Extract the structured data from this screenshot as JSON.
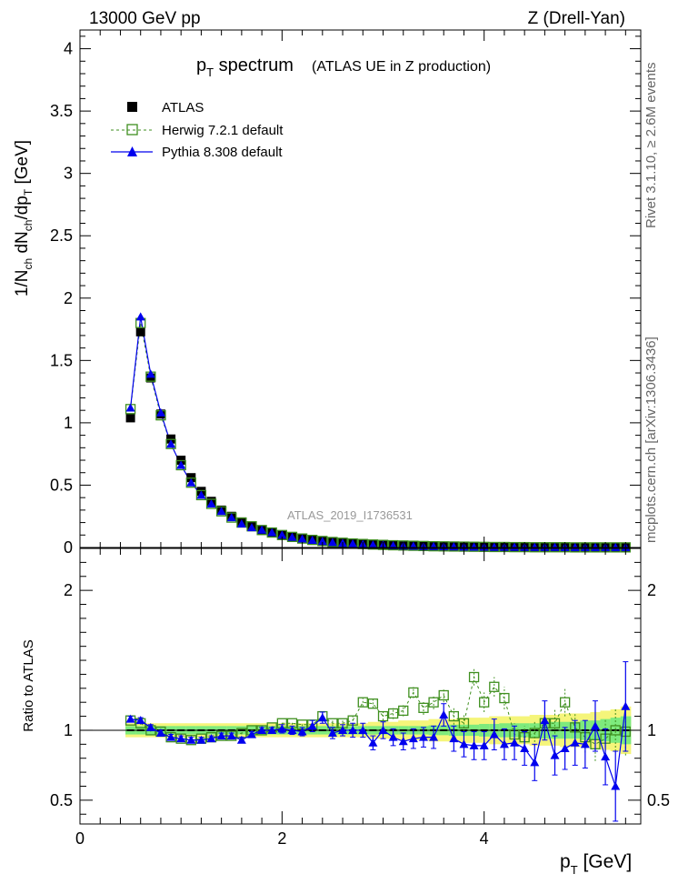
{
  "header": {
    "left": "13000 GeV pp",
    "right": "Z (Drell-Yan)"
  },
  "plot_title": {
    "main": "p",
    "main_sub": "T",
    "main_tail": " spectrum",
    "note": "(ATLAS UE in Z production)"
  },
  "side_labels": {
    "rivet": "Rivet 3.1.10, ≥ 2.6M events",
    "mcplots": "mcplots.cern.ch [arXiv:1306.3436]"
  },
  "watermark": "ATLAS_2019_I1736531",
  "colors": {
    "data": "#000000",
    "herwig": "#3f8f1f",
    "pythia": "#0000ee",
    "band_inner": "#7dea7d",
    "band_outer": "#f5f57a"
  },
  "chart_data": [
    {
      "type": "scatter",
      "title": "p_T spectrum (ATLAS UE in Z production)",
      "xlabel": "p_T [GeV]",
      "ylabel": "1/N_ch dN_ch/dp_T [GeV]",
      "xlim": [
        0,
        5.55
      ],
      "ylim": [
        0,
        4.15
      ],
      "yticks": [
        "0",
        "0.5",
        "1",
        "1.5",
        "2",
        "2.5",
        "3",
        "3.5",
        "4"
      ],
      "legend_position": "top-left",
      "x": [
        0.5,
        0.6,
        0.7,
        0.8,
        0.9,
        1.0,
        1.1,
        1.2,
        1.3,
        1.4,
        1.5,
        1.6,
        1.7,
        1.8,
        1.9,
        2.0,
        2.1,
        2.2,
        2.3,
        2.4,
        2.5,
        2.6,
        2.7,
        2.8,
        2.9,
        3.0,
        3.1,
        3.2,
        3.3,
        3.4,
        3.5,
        3.6,
        3.7,
        3.8,
        3.9,
        4.0,
        4.1,
        4.2,
        4.3,
        4.4,
        4.5,
        4.6,
        4.7,
        4.8,
        4.9,
        5.0,
        5.1,
        5.2,
        5.3,
        5.4
      ],
      "series": [
        {
          "name": "ATLAS",
          "values": [
            1.04,
            1.73,
            1.36,
            1.07,
            0.87,
            0.7,
            0.56,
            0.45,
            0.37,
            0.3,
            0.25,
            0.205,
            0.17,
            0.14,
            0.118,
            0.099,
            0.083,
            0.07,
            0.059,
            0.05,
            0.042,
            0.036,
            0.031,
            0.026,
            0.022,
            0.019,
            0.016,
            0.014,
            0.012,
            0.01,
            0.009,
            0.0078,
            0.0068,
            0.0059,
            0.0051,
            0.0045,
            0.0039,
            0.0034,
            0.003,
            0.0026,
            0.0023,
            0.002,
            0.0018,
            0.0016,
            0.0014,
            0.0012,
            0.0011,
            0.00095,
            0.00085,
            0.00075
          ]
        },
        {
          "name": "Herwig 7.2.1 default",
          "values": [
            1.11,
            1.8,
            1.37,
            1.06,
            0.83,
            0.66,
            0.52,
            0.42,
            0.35,
            0.29,
            0.24,
            0.2,
            0.17,
            0.14,
            0.12,
            0.1,
            0.085,
            0.072,
            0.061,
            0.052,
            0.044,
            0.038,
            0.032,
            0.028,
            0.024,
            0.021,
            0.018,
            0.016,
            0.014,
            0.012,
            0.01,
            0.009,
            0.008,
            0.007,
            0.006,
            0.005,
            0.004,
            0.004,
            0.003,
            0.003,
            0.002,
            0.002,
            0.002,
            0.002,
            0.001,
            0.001,
            0.001,
            0.001,
            0.001,
            0.001
          ]
        },
        {
          "name": "Pythia 8.308 default",
          "values": [
            1.12,
            1.85,
            1.39,
            1.08,
            0.83,
            0.66,
            0.52,
            0.42,
            0.35,
            0.29,
            0.24,
            0.19,
            0.16,
            0.14,
            0.12,
            0.1,
            0.083,
            0.069,
            0.058,
            0.049,
            0.041,
            0.035,
            0.03,
            0.025,
            0.021,
            0.018,
            0.015,
            0.013,
            0.011,
            0.009,
            0.008,
            0.007,
            0.006,
            0.005,
            0.004,
            0.004,
            0.003,
            0.003,
            0.003,
            0.002,
            0.002,
            0.002,
            0.002,
            0.001,
            0.001,
            0.001,
            0.001,
            0.001,
            0.001,
            0.001
          ]
        }
      ]
    },
    {
      "type": "scatter",
      "title": "",
      "xlabel": "p_T [GeV]",
      "ylabel": "Ratio to ATLAS",
      "xlim": [
        0,
        5.55
      ],
      "ylim": [
        0.33,
        2.3
      ],
      "yticks": [
        "0.5",
        "1",
        "2"
      ],
      "xticks": [
        "0",
        "2",
        "4"
      ],
      "x": [
        0.5,
        0.6,
        0.7,
        0.8,
        0.9,
        1.0,
        1.1,
        1.2,
        1.3,
        1.4,
        1.5,
        1.6,
        1.7,
        1.8,
        1.9,
        2.0,
        2.1,
        2.2,
        2.3,
        2.4,
        2.5,
        2.6,
        2.7,
        2.8,
        2.9,
        3.0,
        3.1,
        3.2,
        3.3,
        3.4,
        3.5,
        3.6,
        3.7,
        3.8,
        3.9,
        4.0,
        4.1,
        4.2,
        4.3,
        4.4,
        4.5,
        4.6,
        4.7,
        4.8,
        4.9,
        5.0,
        5.1,
        5.2,
        5.3,
        5.4
      ],
      "band_inner": [
        0.03,
        0.03,
        0.03,
        0.03,
        0.03,
        0.03,
        0.03,
        0.03,
        0.03,
        0.03,
        0.03,
        0.03,
        0.03,
        0.03,
        0.03,
        0.03,
        0.03,
        0.03,
        0.03,
        0.03,
        0.03,
        0.03,
        0.03,
        0.03,
        0.03,
        0.03,
        0.03,
        0.03,
        0.03,
        0.03,
        0.035,
        0.035,
        0.04,
        0.04,
        0.04,
        0.045,
        0.045,
        0.05,
        0.05,
        0.05,
        0.05,
        0.06,
        0.06,
        0.06,
        0.06,
        0.07,
        0.07,
        0.08,
        0.09,
        0.1
      ],
      "band_outer": [
        0.05,
        0.05,
        0.05,
        0.05,
        0.05,
        0.05,
        0.05,
        0.05,
        0.05,
        0.05,
        0.05,
        0.05,
        0.05,
        0.05,
        0.05,
        0.05,
        0.05,
        0.05,
        0.05,
        0.05,
        0.05,
        0.05,
        0.05,
        0.05,
        0.06,
        0.06,
        0.06,
        0.07,
        0.07,
        0.07,
        0.08,
        0.08,
        0.08,
        0.09,
        0.09,
        0.09,
        0.1,
        0.1,
        0.1,
        0.1,
        0.11,
        0.11,
        0.11,
        0.12,
        0.12,
        0.12,
        0.13,
        0.14,
        0.15,
        0.17
      ],
      "series": [
        {
          "name": "Herwig 7.2.1 default",
          "values": [
            1.07,
            1.05,
            1.0,
            0.99,
            0.95,
            0.94,
            0.93,
            0.94,
            0.95,
            0.96,
            0.96,
            0.98,
            1.0,
            1.0,
            1.02,
            1.05,
            1.05,
            1.04,
            1.04,
            1.1,
            1.05,
            1.05,
            1.07,
            1.2,
            1.19,
            1.1,
            1.12,
            1.14,
            1.27,
            1.16,
            1.2,
            1.25,
            1.1,
            1.05,
            1.38,
            1.2,
            1.31,
            1.23,
            0.97,
            0.95,
            0.98,
            1.05,
            1.05,
            1.2,
            1.02,
            0.95,
            0.9,
            0.94,
            1.0,
            0.99
          ],
          "err": [
            0.01,
            0.01,
            0.01,
            0.01,
            0.01,
            0.01,
            0.01,
            0.01,
            0.01,
            0.01,
            0.01,
            0.01,
            0.01,
            0.01,
            0.01,
            0.01,
            0.01,
            0.01,
            0.02,
            0.02,
            0.02,
            0.02,
            0.03,
            0.03,
            0.03,
            0.03,
            0.04,
            0.04,
            0.04,
            0.05,
            0.05,
            0.05,
            0.06,
            0.06,
            0.06,
            0.07,
            0.07,
            0.08,
            0.08,
            0.08,
            0.09,
            0.09,
            0.1,
            0.1,
            0.1,
            0.11,
            0.12,
            0.14,
            0.15,
            0.17
          ]
        },
        {
          "name": "Pythia 8.308 default",
          "values": [
            1.08,
            1.07,
            1.02,
            0.98,
            0.95,
            0.94,
            0.93,
            0.93,
            0.94,
            0.96,
            0.96,
            0.93,
            0.97,
            1.0,
            1.0,
            1.01,
            1.0,
            0.99,
            1.03,
            1.09,
            0.98,
            1.0,
            1.0,
            1.0,
            0.91,
            1.0,
            0.95,
            0.92,
            0.94,
            0.95,
            0.95,
            1.11,
            0.94,
            0.9,
            0.89,
            0.89,
            0.97,
            0.9,
            0.91,
            0.87,
            0.77,
            1.07,
            0.82,
            0.87,
            0.91,
            0.9,
            1.03,
            0.81,
            0.6,
            1.17
          ],
          "err": [
            0.02,
            0.02,
            0.02,
            0.02,
            0.02,
            0.02,
            0.02,
            0.02,
            0.02,
            0.02,
            0.02,
            0.02,
            0.02,
            0.02,
            0.02,
            0.03,
            0.03,
            0.03,
            0.04,
            0.04,
            0.04,
            0.04,
            0.05,
            0.05,
            0.05,
            0.06,
            0.06,
            0.06,
            0.07,
            0.07,
            0.08,
            0.08,
            0.09,
            0.09,
            0.1,
            0.1,
            0.11,
            0.11,
            0.12,
            0.12,
            0.13,
            0.14,
            0.14,
            0.15,
            0.16,
            0.17,
            0.18,
            0.2,
            0.25,
            0.32
          ]
        }
      ]
    }
  ]
}
